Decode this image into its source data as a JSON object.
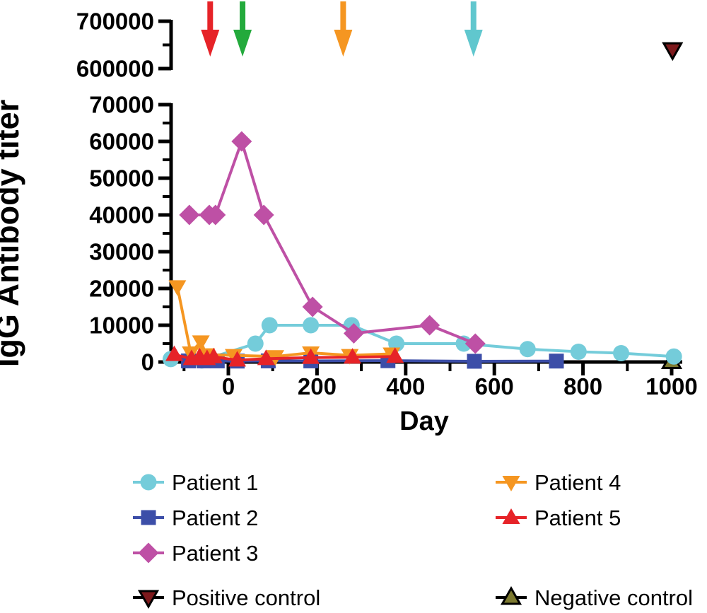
{
  "chart_data": {
    "type": "line",
    "title": "",
    "xlabel": "Day",
    "ylabel": "IgG Antibody titer",
    "grid": false,
    "x_axis": {
      "range": [
        -132,
        1015
      ],
      "ticks": [
        0,
        200,
        400,
        600,
        800,
        1000
      ],
      "tick_labels": [
        "0",
        "200",
        "400",
        "600",
        "800",
        "1000"
      ],
      "minor_ticks": [
        -100,
        100,
        300,
        500,
        700,
        900
      ]
    },
    "y_axis_broken": true,
    "y_axis_lower": {
      "range": [
        0,
        70000
      ],
      "ticks": [
        0,
        10000,
        20000,
        30000,
        40000,
        50000,
        60000,
        70000
      ],
      "tick_labels": [
        "0",
        "10000",
        "20000",
        "30000",
        "40000",
        "50000",
        "60000",
        "70000"
      ],
      "minor_ticks": [
        5000,
        15000,
        25000,
        35000,
        45000,
        55000,
        65000
      ]
    },
    "y_axis_upper": {
      "range": [
        600000,
        700000
      ],
      "ticks": [
        600000,
        700000
      ],
      "tick_labels": [
        "600000",
        "700000"
      ],
      "minor_ticks": [
        650000
      ]
    },
    "series": [
      {
        "name": "Patient 1",
        "marker": "circle",
        "color": "#74CCDA",
        "points": [
          [
            -130,
            800
          ],
          [
            -60,
            400
          ],
          [
            61,
            5000
          ],
          [
            93,
            10000
          ],
          [
            186,
            10000
          ],
          [
            278,
            10000
          ],
          [
            379,
            5000
          ],
          [
            531,
            5000
          ],
          [
            675,
            3500
          ],
          [
            790,
            2800
          ],
          [
            886,
            2400
          ],
          [
            1005,
            1500
          ]
        ]
      },
      {
        "name": "Patient 2",
        "marker": "square",
        "color": "#3C4EA8",
        "points": [
          [
            -90,
            300
          ],
          [
            -55,
            300
          ],
          [
            -25,
            300
          ],
          [
            20,
            250
          ],
          [
            90,
            300
          ],
          [
            186,
            300
          ],
          [
            360,
            350
          ],
          [
            555,
            200
          ],
          [
            740,
            250
          ]
        ]
      },
      {
        "name": "Patient 3",
        "marker": "diamond",
        "color": "#BE50A5",
        "points": [
          [
            -88,
            40000
          ],
          [
            -43,
            40000
          ],
          [
            -29,
            40000
          ],
          [
            30,
            60000
          ],
          [
            80,
            40000
          ],
          [
            190,
            15000
          ],
          [
            283,
            7800
          ],
          [
            454,
            10000
          ],
          [
            557,
            5000
          ]
        ]
      },
      {
        "name": "Patient 4",
        "marker": "triangle-down",
        "color": "#F59621",
        "points": [
          [
            -115,
            20500
          ],
          [
            -85,
            2500
          ],
          [
            -62,
            5500
          ],
          [
            -50,
            2000
          ],
          [
            12,
            1800
          ],
          [
            106,
            1500
          ],
          [
            186,
            2500
          ],
          [
            274,
            1800
          ],
          [
            368,
            2200
          ]
        ]
      },
      {
        "name": "Patient 5",
        "marker": "triangle-up",
        "color": "#E62328",
        "points": [
          [
            -122,
            2000
          ],
          [
            -83,
            900
          ],
          [
            -65,
            1400
          ],
          [
            -48,
            900
          ],
          [
            -33,
            1400
          ],
          [
            20,
            500
          ],
          [
            85,
            900
          ],
          [
            186,
            1200
          ],
          [
            280,
            1300
          ],
          [
            376,
            1500
          ]
        ]
      }
    ],
    "controls": [
      {
        "name": "Positive control",
        "marker": "triangle-down",
        "fill": "#7D191C",
        "stroke": "#000000",
        "axis": "upper",
        "point": [
          1002,
          640000
        ]
      },
      {
        "name": "Negative control",
        "marker": "triangle-up",
        "fill": "#7D7A30",
        "stroke": "#000000",
        "axis": "lower",
        "point": [
          1000,
          100
        ]
      }
    ],
    "event_arrows": [
      {
        "day": -41,
        "color": "#E62328",
        "name": "red-event-arrow"
      },
      {
        "day": 32,
        "color": "#23AA3C",
        "name": "green-event-arrow"
      },
      {
        "day": 259,
        "color": "#F59621",
        "name": "orange-event-arrow"
      },
      {
        "day": 553,
        "color": "#60C7CE",
        "name": "teal-event-arrow"
      }
    ],
    "legend": {
      "columns": [
        {
          "series": [
            0,
            1,
            2
          ]
        },
        {
          "series": [
            3,
            4
          ]
        }
      ],
      "controls_row": [
        0,
        1
      ],
      "line_color_controls": "#000000"
    }
  }
}
